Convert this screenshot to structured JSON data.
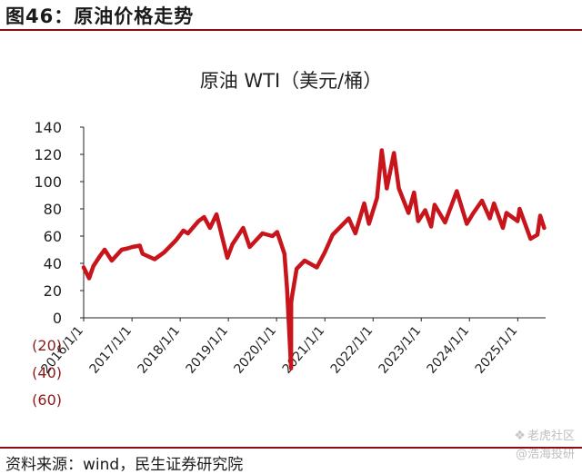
{
  "figure_title": "图46：原油价格走势",
  "source_text": "资料来源：wind，民生证券研究院",
  "watermark": {
    "line1": "老虎社区",
    "line2": "@浩海投研",
    "icon1": "tiger-icon",
    "icon2": "at-icon"
  },
  "colors": {
    "series": "#c8141b",
    "rule": "#8b0d12",
    "negative_tick": "#8b1a1a"
  },
  "chart_data": {
    "type": "line",
    "title": "原油 WTI（美元/桶）",
    "xlabel": "",
    "ylabel": "",
    "ylim": [
      -60,
      140
    ],
    "yticks": [
      140,
      120,
      100,
      80,
      60,
      40,
      20,
      0,
      -20,
      -40,
      -60
    ],
    "ytick_labels": [
      "140",
      "120",
      "100",
      "80",
      "60",
      "40",
      "20",
      "0",
      "(20)",
      "(40)",
      "(60)"
    ],
    "xlim": [
      "2016-01-01",
      "2025-07-31"
    ],
    "xticks": [
      "2016-01-01",
      "2017-01-01",
      "2018-01-01",
      "2019-01-01",
      "2020-01-01",
      "2021-01-01",
      "2022-01-01",
      "2023-01-01",
      "2024-01-01",
      "2025-01-01"
    ],
    "xtick_labels": [
      "2016/1/1",
      "2017/1/1",
      "2018/1/1",
      "2019/1/1",
      "2020/1/1",
      "2021/1/1",
      "2022/1/1",
      "2023/1/1",
      "2024/1/1",
      "2025/1/1"
    ],
    "grid": false,
    "legend": "none",
    "series": [
      {
        "x": [
          "2016-01-01",
          "2016-02-11",
          "2016-03-15",
          "2016-05-01",
          "2016-06-08",
          "2016-08-01",
          "2016-10-15",
          "2016-12-01",
          "2017-01-03",
          "2017-03-01",
          "2017-03-22",
          "2017-06-21",
          "2017-09-01",
          "2017-12-01",
          "2018-01-25",
          "2018-03-01",
          "2018-05-20",
          "2018-07-01",
          "2018-08-15",
          "2018-10-03",
          "2018-12-24",
          "2019-02-01",
          "2019-04-23",
          "2019-06-12",
          "2019-09-16",
          "2019-12-01",
          "2020-01-06",
          "2020-03-01",
          "2020-03-20",
          "2020-04-20",
          "2020-04-21",
          "2020-04-28",
          "2020-06-01",
          "2020-08-01",
          "2020-11-01",
          "2020-12-31",
          "2021-03-01",
          "2021-07-01",
          "2021-08-20",
          "2021-10-26",
          "2021-12-01",
          "2022-01-31",
          "2022-03-08",
          "2022-04-15",
          "2022-06-08",
          "2022-07-15",
          "2022-09-26",
          "2022-11-07",
          "2022-12-09",
          "2023-01-31",
          "2023-03-17",
          "2023-04-12",
          "2023-06-30",
          "2023-09-27",
          "2023-12-12",
          "2024-01-31",
          "2024-04-05",
          "2024-06-03",
          "2024-07-05",
          "2024-09-10",
          "2024-10-07",
          "2024-12-31",
          "2025-01-15",
          "2025-04-08",
          "2025-05-30",
          "2025-06-20",
          "2025-07-20"
        ],
        "values": [
          37,
          29,
          38,
          45,
          50,
          42,
          50,
          51,
          52,
          53,
          47,
          43,
          48,
          57,
          64,
          62,
          71,
          74,
          66,
          76,
          44,
          54,
          66,
          52,
          62,
          60,
          63,
          47,
          22,
          -37,
          11,
          16,
          36,
          42,
          37,
          48,
          61,
          73,
          62,
          84,
          69,
          88,
          123,
          95,
          121,
          95,
          77,
          92,
          71,
          79,
          67,
          83,
          70,
          93,
          69,
          77,
          86,
          73,
          84,
          66,
          77,
          71,
          80,
          58,
          61,
          75,
          66
        ]
      }
    ]
  }
}
